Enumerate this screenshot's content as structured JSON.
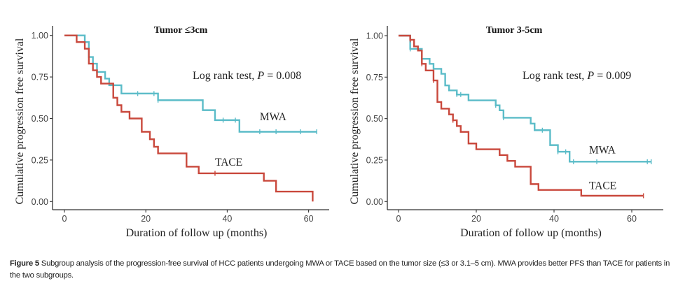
{
  "chart_data": [
    {
      "type": "line",
      "subtype": "kaplan-meier-step",
      "title": "Tumor ≤3cm",
      "xlabel": "Duration of follow up (months)",
      "ylabel": "Cumulative  progression free survival",
      "xlim": [
        -3,
        64
      ],
      "ylim": [
        -0.03,
        1.05
      ],
      "xticks": [
        0,
        20,
        40,
        60
      ],
      "xtick_labels": [
        "0",
        "20",
        "40",
        "60"
      ],
      "yticks": [
        0,
        0.25,
        0.5,
        0.75,
        1.0
      ],
      "ytick_labels": [
        "0.00",
        "0.25",
        "0.50",
        "0.75",
        "1.00"
      ],
      "grid": false,
      "annotation": {
        "prefix": "Log rank test, ",
        "p_symbol": "P",
        "suffix": " = 0.008"
      },
      "series": [
        {
          "name": "MWA",
          "color": "#5bbcc8",
          "label_at": [
            48,
            0.49
          ],
          "steps": [
            [
              0,
              1.0
            ],
            [
              5,
              0.96
            ],
            [
              6,
              0.87
            ],
            [
              7,
              0.83
            ],
            [
              8,
              0.78
            ],
            [
              10,
              0.74
            ],
            [
              11,
              0.7
            ],
            [
              14,
              0.65
            ],
            [
              23,
              0.61
            ],
            [
              34,
              0.55
            ],
            [
              37,
              0.49
            ],
            [
              43,
              0.42
            ]
          ],
          "end": 62,
          "censors": [
            18,
            22,
            23,
            39,
            42,
            48,
            52,
            58,
            62
          ]
        },
        {
          "name": "TACE",
          "color": "#c9483c",
          "label_at": [
            37,
            0.215
          ],
          "steps": [
            [
              0,
              1.0
            ],
            [
              3,
              0.96
            ],
            [
              5,
              0.92
            ],
            [
              6,
              0.83
            ],
            [
              7,
              0.79
            ],
            [
              8,
              0.75
            ],
            [
              9,
              0.71
            ],
            [
              12,
              0.625
            ],
            [
              13,
              0.58
            ],
            [
              14,
              0.54
            ],
            [
              16,
              0.5
            ],
            [
              19,
              0.42
            ],
            [
              21,
              0.375
            ],
            [
              22,
              0.33
            ],
            [
              23,
              0.29
            ],
            [
              30,
              0.21
            ],
            [
              33,
              0.17
            ],
            [
              49,
              0.125
            ],
            [
              52,
              0.06
            ],
            [
              61,
              0.0
            ]
          ],
          "end": 61,
          "censors": [
            37
          ]
        }
      ]
    },
    {
      "type": "line",
      "subtype": "kaplan-meier-step",
      "title": "Tumor 3-5cm",
      "xlabel": "Duration of follow up (months)",
      "ylabel": "Cumulative  progression free survival",
      "xlim": [
        -3,
        68
      ],
      "ylim": [
        -0.03,
        1.05
      ],
      "xticks": [
        0,
        20,
        40,
        60
      ],
      "xtick_labels": [
        "0",
        "20",
        "40",
        "60"
      ],
      "yticks": [
        0,
        0.25,
        0.5,
        0.75,
        1.0
      ],
      "ytick_labels": [
        "0.00",
        "0.25",
        "0.50",
        "0.75",
        "1.00"
      ],
      "grid": false,
      "annotation": {
        "prefix": "Log rank test, ",
        "p_symbol": "P",
        "suffix": " = 0.009"
      },
      "series": [
        {
          "name": "MWA",
          "color": "#5bbcc8",
          "label_at": [
            49,
            0.29
          ],
          "steps": [
            [
              0,
              1.0
            ],
            [
              3,
              0.92
            ],
            [
              6,
              0.86
            ],
            [
              8,
              0.83
            ],
            [
              9,
              0.8
            ],
            [
              11,
              0.77
            ],
            [
              12,
              0.7
            ],
            [
              13,
              0.67
            ],
            [
              15,
              0.645
            ],
            [
              18,
              0.61
            ],
            [
              25,
              0.58
            ],
            [
              26,
              0.55
            ],
            [
              27,
              0.505
            ],
            [
              34,
              0.47
            ],
            [
              35,
              0.43
            ],
            [
              39,
              0.34
            ],
            [
              41,
              0.3
            ],
            [
              44,
              0.24
            ]
          ],
          "end": 65,
          "censors": [
            3,
            15,
            16,
            25,
            27,
            37,
            41,
            43,
            45,
            51,
            64,
            65
          ]
        },
        {
          "name": "TACE",
          "color": "#c9483c",
          "label_at": [
            49,
            0.075
          ],
          "steps": [
            [
              0,
              1.0
            ],
            [
              3,
              0.975
            ],
            [
              4,
              0.935
            ],
            [
              5,
              0.91
            ],
            [
              6,
              0.83
            ],
            [
              7,
              0.79
            ],
            [
              9,
              0.73
            ],
            [
              10,
              0.6
            ],
            [
              11,
              0.56
            ],
            [
              13,
              0.525
            ],
            [
              14,
              0.49
            ],
            [
              15,
              0.455
            ],
            [
              16,
              0.42
            ],
            [
              18,
              0.35
            ],
            [
              20,
              0.315
            ],
            [
              26,
              0.28
            ],
            [
              28,
              0.245
            ],
            [
              30,
              0.21
            ],
            [
              34,
              0.105
            ],
            [
              36,
              0.07
            ],
            [
              47,
              0.035
            ]
          ],
          "end": 63,
          "censors": [
            3,
            6,
            9,
            14,
            63
          ]
        }
      ]
    }
  ],
  "caption": {
    "label": "Figure 5",
    "text": " Subgroup analysis of the progression-free survival of HCC patients undergoing MWA or TACE based on the tumor size (≤3 or 3.1–5 cm). MWA provides better PFS than TACE for patients in the two subgroups."
  }
}
